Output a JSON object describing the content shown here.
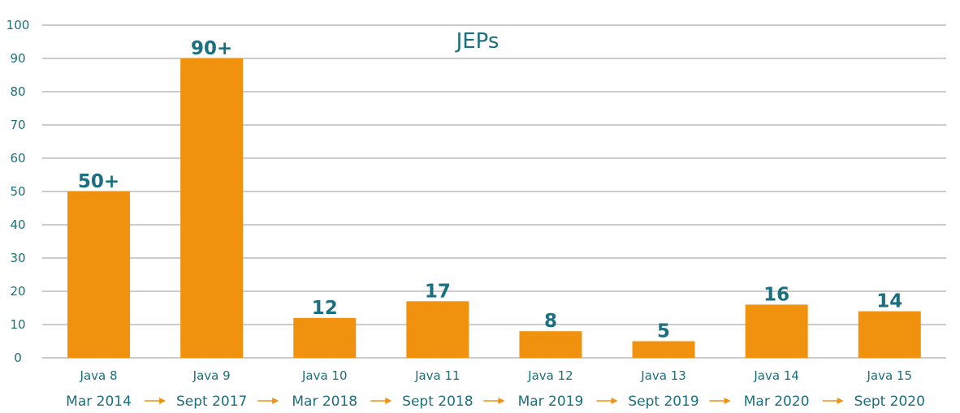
{
  "chart_data": {
    "type": "bar",
    "title": "JEPs",
    "categories": [
      "Java 8",
      "Java 9",
      "Java 10",
      "Java 11",
      "Java 12",
      "Java 13",
      "Java 14",
      "Java 15"
    ],
    "release_dates": [
      "Mar 2014",
      "Sept 2017",
      "Mar 2018",
      "Sept 2018",
      "Mar 2019",
      "Sept 2019",
      "Mar 2020",
      "Sept 2020"
    ],
    "values": [
      50,
      90,
      12,
      17,
      8,
      5,
      16,
      14
    ],
    "data_labels": [
      "50+",
      "90+",
      "12",
      "17",
      "8",
      "5",
      "16",
      "14"
    ],
    "y_ticks": [
      "0",
      "10",
      "20",
      "30",
      "40",
      "50",
      "60",
      "70",
      "80",
      "90",
      "100"
    ],
    "ylim": [
      0,
      100
    ],
    "grid": true,
    "colors": {
      "bar": "#f0920e",
      "text": "#1c6f7e",
      "grid": "#9a9a9a",
      "arrow": "#f0920e"
    }
  }
}
